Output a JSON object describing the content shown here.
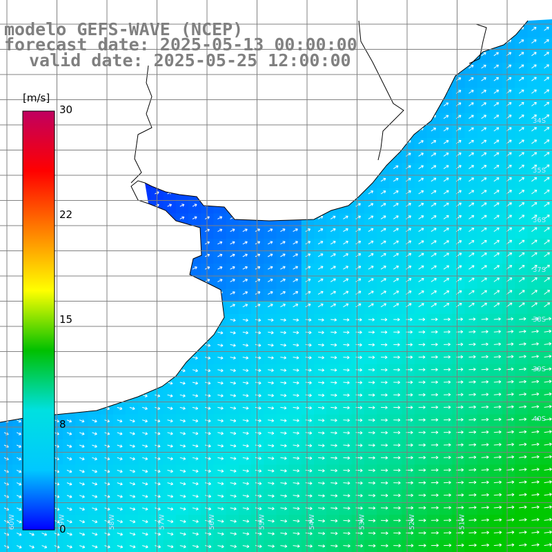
{
  "header": {
    "line1": "modelo GEFS-WAVE (NCEP)",
    "line2": "forecast date: 2025-05-13 00:00:00",
    "line3": "valid date: 2025-05-25 12:00:00"
  },
  "colorbar": {
    "unit": "[m/s]",
    "min": 0,
    "max": 30,
    "ticks": [
      "30",
      "22",
      "15",
      "8",
      "0"
    ],
    "stops": [
      "#0000ff",
      "#00c8ff",
      "#00e0e0",
      "#00c000",
      "#ffff00",
      "#ff8000",
      "#ff0000",
      "#c00060"
    ]
  },
  "map": {
    "lat_labels": [
      "34S",
      "35S",
      "36S",
      "37S",
      "38S",
      "39S",
      "40S"
    ],
    "lon_labels": [
      "60W",
      "59W",
      "58W",
      "57W",
      "56W",
      "55W",
      "54W",
      "53W",
      "52W",
      "51W"
    ],
    "colors": {
      "land": "#ffffff",
      "coast": "#000000",
      "grid": "#808080",
      "arrow": "#ffffff"
    }
  }
}
